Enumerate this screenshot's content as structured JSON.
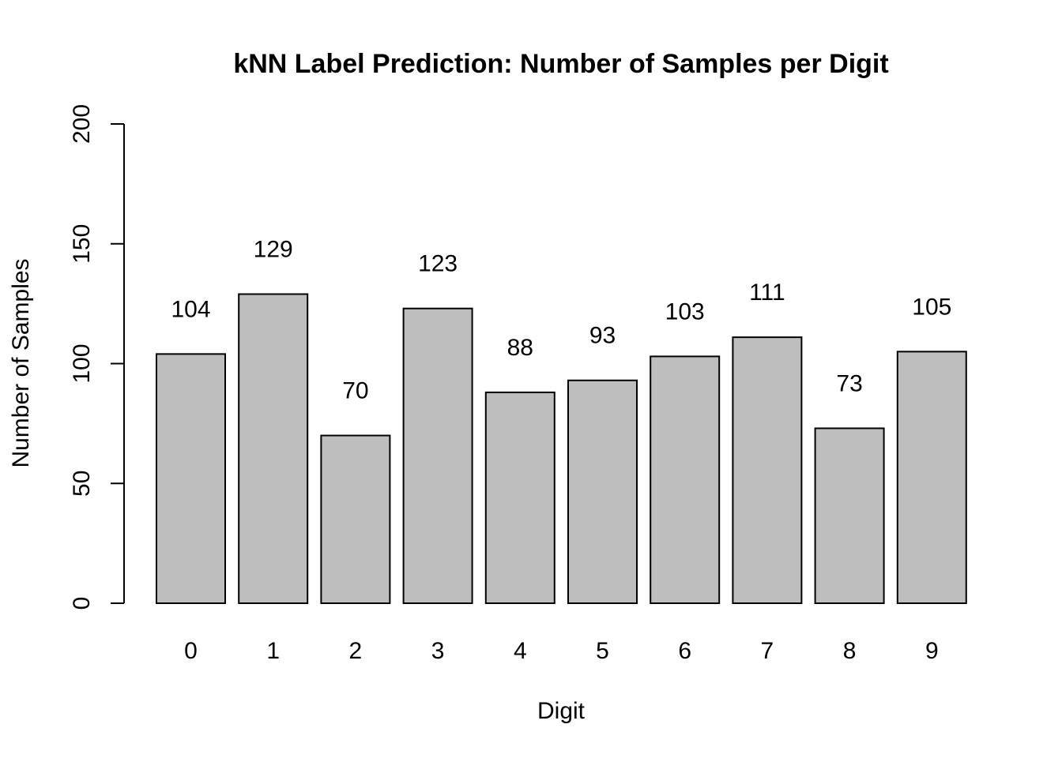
{
  "chart_data": {
    "type": "bar",
    "title": "kNN Label Prediction: Number of Samples per Digit",
    "xlabel": "Digit",
    "ylabel": "Number of Samples",
    "categories": [
      "0",
      "1",
      "2",
      "3",
      "4",
      "5",
      "6",
      "7",
      "8",
      "9"
    ],
    "values": [
      104,
      129,
      70,
      123,
      88,
      93,
      103,
      111,
      73,
      105
    ],
    "data_labels": [
      "104",
      "129",
      "70",
      "123",
      "88",
      "93",
      "103",
      "111",
      "73",
      "105"
    ],
    "ylim": [
      0,
      200
    ],
    "yticks": [
      0,
      50,
      100,
      150,
      200
    ],
    "ytick_labels": [
      "0",
      "50",
      "100",
      "150",
      "200"
    ],
    "grid": false,
    "legend": "none",
    "bar_color": "#bebebe",
    "bar_edge_color": "#000000"
  }
}
